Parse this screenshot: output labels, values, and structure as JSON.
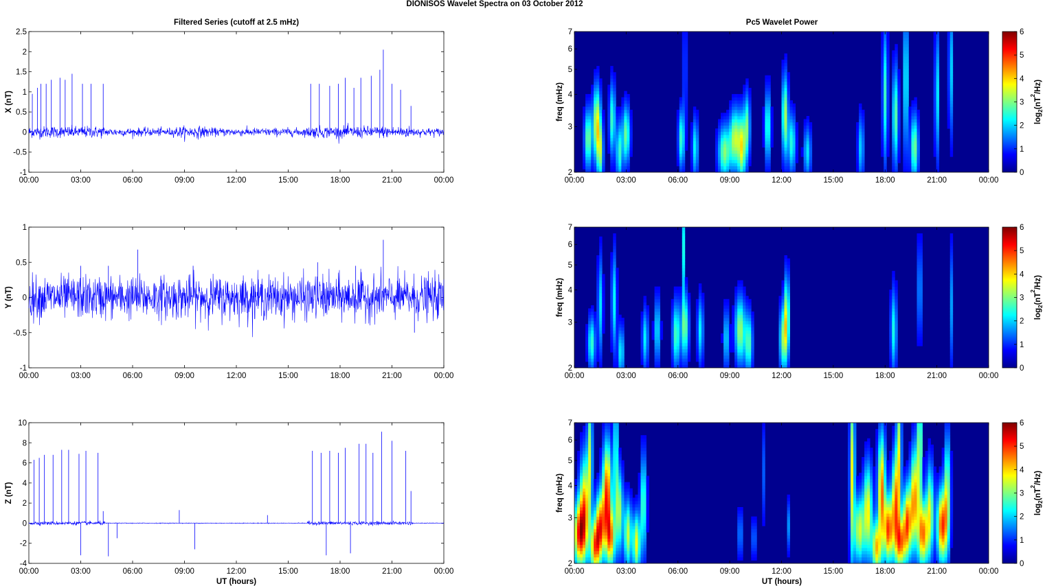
{
  "figure_title": "DIONISOS Wavelet Spectra on 03 October   2012",
  "left_title": "Filtered Series (cutoff at 2.5 mHz)",
  "right_title": "Pc5 Wavelet Power",
  "xlabel": "UT (hours)",
  "time_ticks": [
    "00:00",
    "03:00",
    "06:00",
    "09:00",
    "12:00",
    "15:00",
    "18:00",
    "21:00",
    "00:00"
  ],
  "colors": {
    "series_line": "#0000ff",
    "spectrogram_background": "#00008f"
  },
  "chart_data": [
    {
      "type": "line",
      "ylabel": "X (nT)",
      "ylim": [
        -1,
        2.5
      ],
      "yticks": [
        "-1",
        "-0.5",
        "0",
        "0.5",
        "1",
        "1.5",
        "2",
        "2.5"
      ],
      "xlim_hours": [
        0,
        24
      ],
      "noise_amplitude_nT": 0.12,
      "spikes": [
        {
          "t": 0.2,
          "v": 0.95
        },
        {
          "t": 0.5,
          "v": 1.1
        },
        {
          "t": 0.7,
          "v": 1.2
        },
        {
          "t": 1.0,
          "v": 1.2
        },
        {
          "t": 1.3,
          "v": 1.3
        },
        {
          "t": 1.8,
          "v": 1.35
        },
        {
          "t": 2.1,
          "v": 1.3
        },
        {
          "t": 2.5,
          "v": 1.45
        },
        {
          "t": 3.1,
          "v": 1.2
        },
        {
          "t": 3.6,
          "v": 1.2
        },
        {
          "t": 4.3,
          "v": 1.2
        },
        {
          "t": 16.3,
          "v": 1.2
        },
        {
          "t": 16.8,
          "v": 1.2
        },
        {
          "t": 17.4,
          "v": 1.15
        },
        {
          "t": 17.9,
          "v": 1.2
        },
        {
          "t": 18.3,
          "v": 1.35
        },
        {
          "t": 18.8,
          "v": 1.1
        },
        {
          "t": 19.2,
          "v": 1.35
        },
        {
          "t": 19.8,
          "v": 1.4
        },
        {
          "t": 20.3,
          "v": 1.55
        },
        {
          "t": 20.5,
          "v": 2.05
        },
        {
          "t": 21.0,
          "v": 1.2
        },
        {
          "t": 21.5,
          "v": 1.05
        },
        {
          "t": 22.1,
          "v": 0.65
        }
      ]
    },
    {
      "type": "line",
      "ylabel": "Y (nT)",
      "ylim": [
        -1,
        1
      ],
      "yticks": [
        "-1",
        "-0.5",
        "0",
        "0.5",
        "1"
      ],
      "xlim_hours": [
        0,
        24
      ],
      "noise_amplitude_nT": 0.25,
      "spikes": [
        {
          "t": 3.0,
          "v": 0.45
        },
        {
          "t": 4.6,
          "v": 0.45
        },
        {
          "t": 6.3,
          "v": 0.68
        },
        {
          "t": 9.5,
          "v": 0.45
        },
        {
          "t": 16.7,
          "v": 0.5
        },
        {
          "t": 18.9,
          "v": 0.45
        },
        {
          "t": 20.5,
          "v": 0.82
        },
        {
          "t": 22.3,
          "v": -0.5
        }
      ]
    },
    {
      "type": "line",
      "ylabel": "Z (nT)",
      "ylim": [
        -4,
        10
      ],
      "yticks": [
        "-4",
        "-2",
        "0",
        "2",
        "4",
        "6",
        "8",
        "10"
      ],
      "xlim_hours": [
        0,
        24
      ],
      "noise_amplitude_nT": 0.15,
      "spikes": [
        {
          "t": 0.3,
          "v": 6.3
        },
        {
          "t": 0.6,
          "v": 6.5
        },
        {
          "t": 0.9,
          "v": 6.8
        },
        {
          "t": 1.4,
          "v": 6.8
        },
        {
          "t": 1.9,
          "v": 7.3
        },
        {
          "t": 2.3,
          "v": 7.3
        },
        {
          "t": 2.9,
          "v": 6.9
        },
        {
          "t": 3.3,
          "v": 7.2
        },
        {
          "t": 4.0,
          "v": 7.0
        },
        {
          "t": 4.3,
          "v": 1.2
        },
        {
          "t": 3.0,
          "v": -3.2
        },
        {
          "t": 4.6,
          "v": -3.3
        },
        {
          "t": 5.1,
          "v": -1.5
        },
        {
          "t": 8.7,
          "v": 1.3
        },
        {
          "t": 9.6,
          "v": -2.6
        },
        {
          "t": 13.8,
          "v": 0.8
        },
        {
          "t": 16.4,
          "v": 7.2
        },
        {
          "t": 16.9,
          "v": 7.0
        },
        {
          "t": 17.2,
          "v": -3.2
        },
        {
          "t": 17.4,
          "v": 7.2
        },
        {
          "t": 17.9,
          "v": 7.0
        },
        {
          "t": 18.3,
          "v": 7.5
        },
        {
          "t": 18.6,
          "v": -3.0
        },
        {
          "t": 19.1,
          "v": 7.9
        },
        {
          "t": 19.5,
          "v": 7.9
        },
        {
          "t": 19.9,
          "v": 7.0
        },
        {
          "t": 20.4,
          "v": 9.1
        },
        {
          "t": 21.0,
          "v": 8.2
        },
        {
          "t": 21.8,
          "v": 7.2
        },
        {
          "t": 22.1,
          "v": 3.2
        }
      ]
    },
    {
      "type": "heatmap",
      "ylabel": "freq (mHz)",
      "yscale": "log",
      "ylim": [
        2,
        7
      ],
      "yticks": [
        "2",
        "3",
        "4",
        "5",
        "6",
        "7"
      ],
      "xlim_hours": [
        0,
        24
      ],
      "colorbar_label": "log2(nT2/Hz)",
      "clim": [
        0,
        6
      ],
      "cticks": [
        "0",
        "1",
        "2",
        "3",
        "4",
        "5",
        "6"
      ],
      "blobs": [
        {
          "t": 0.8,
          "f": 2.7,
          "p": 2.8,
          "w": 0.15,
          "h": 0.18
        },
        {
          "t": 1.3,
          "f": 3.1,
          "p": 3.6,
          "w": 0.15,
          "h": 0.22
        },
        {
          "t": 1.5,
          "f": 2.4,
          "p": 2.6,
          "w": 0.12,
          "h": 0.18
        },
        {
          "t": 2.2,
          "f": 3.2,
          "p": 2.4,
          "w": 0.12,
          "h": 0.22
        },
        {
          "t": 2.6,
          "f": 2.4,
          "p": 2.3,
          "w": 0.12,
          "h": 0.18
        },
        {
          "t": 3.0,
          "f": 2.8,
          "p": 2.7,
          "w": 0.15,
          "h": 0.18
        },
        {
          "t": 6.2,
          "f": 2.7,
          "p": 2.4,
          "w": 0.12,
          "h": 0.18
        },
        {
          "t": 6.4,
          "f": 5.0,
          "p": 1.9,
          "w": 0.05,
          "h": 0.4
        },
        {
          "t": 7.0,
          "f": 2.5,
          "p": 2.0,
          "w": 0.12,
          "h": 0.18
        },
        {
          "t": 8.7,
          "f": 2.4,
          "p": 2.8,
          "w": 0.25,
          "h": 0.16
        },
        {
          "t": 9.3,
          "f": 2.7,
          "p": 3.1,
          "w": 0.2,
          "h": 0.18
        },
        {
          "t": 9.7,
          "f": 2.5,
          "p": 3.3,
          "w": 0.15,
          "h": 0.2
        },
        {
          "t": 10.0,
          "f": 3.0,
          "p": 2.5,
          "w": 0.12,
          "h": 0.2
        },
        {
          "t": 11.2,
          "f": 3.0,
          "p": 2.4,
          "w": 0.12,
          "h": 0.22
        },
        {
          "t": 12.2,
          "f": 3.3,
          "p": 3.1,
          "w": 0.12,
          "h": 0.25
        },
        {
          "t": 12.6,
          "f": 2.6,
          "p": 2.2,
          "w": 0.15,
          "h": 0.18
        },
        {
          "t": 13.5,
          "f": 2.4,
          "p": 1.8,
          "w": 0.15,
          "h": 0.16
        },
        {
          "t": 16.6,
          "f": 2.5,
          "p": 1.7,
          "w": 0.12,
          "h": 0.2
        },
        {
          "t": 18.0,
          "f": 4.0,
          "p": 2.3,
          "w": 0.1,
          "h": 0.4
        },
        {
          "t": 18.6,
          "f": 3.3,
          "p": 2.6,
          "w": 0.12,
          "h": 0.3
        },
        {
          "t": 19.2,
          "f": 4.5,
          "p": 2.2,
          "w": 0.1,
          "h": 0.45
        },
        {
          "t": 19.7,
          "f": 2.5,
          "p": 2.8,
          "w": 0.15,
          "h": 0.2
        },
        {
          "t": 21.0,
          "f": 4.0,
          "p": 2.0,
          "w": 0.08,
          "h": 0.4
        },
        {
          "t": 21.8,
          "f": 5.0,
          "p": 1.8,
          "w": 0.08,
          "h": 0.4
        }
      ]
    },
    {
      "type": "heatmap",
      "ylabel": "freq (mHz)",
      "yscale": "log",
      "ylim": [
        2,
        7
      ],
      "yticks": [
        "2",
        "3",
        "4",
        "5",
        "6",
        "7"
      ],
      "xlim_hours": [
        0,
        24
      ],
      "colorbar_label": "log2(nT2/Hz)",
      "clim": [
        0,
        6
      ],
      "cticks": [
        "0",
        "1",
        "2",
        "3",
        "4",
        "5",
        "6"
      ],
      "blobs": [
        {
          "t": 1.0,
          "f": 2.5,
          "p": 2.3,
          "w": 0.15,
          "h": 0.16
        },
        {
          "t": 1.5,
          "f": 3.5,
          "p": 1.8,
          "w": 0.1,
          "h": 0.3
        },
        {
          "t": 2.3,
          "f": 3.6,
          "p": 2.0,
          "w": 0.1,
          "h": 0.3
        },
        {
          "t": 2.7,
          "f": 2.3,
          "p": 2.0,
          "w": 0.12,
          "h": 0.16
        },
        {
          "t": 4.1,
          "f": 2.6,
          "p": 1.9,
          "w": 0.12,
          "h": 0.18
        },
        {
          "t": 4.8,
          "f": 2.8,
          "p": 1.9,
          "w": 0.12,
          "h": 0.2
        },
        {
          "t": 5.9,
          "f": 2.7,
          "p": 2.5,
          "w": 0.15,
          "h": 0.2
        },
        {
          "t": 6.4,
          "f": 2.9,
          "p": 2.8,
          "w": 0.15,
          "h": 0.2
        },
        {
          "t": 6.3,
          "f": 5.8,
          "p": 2.2,
          "w": 0.05,
          "h": 0.3
        },
        {
          "t": 7.3,
          "f": 2.8,
          "p": 1.9,
          "w": 0.12,
          "h": 0.2
        },
        {
          "t": 8.8,
          "f": 2.6,
          "p": 1.8,
          "w": 0.12,
          "h": 0.18
        },
        {
          "t": 9.6,
          "f": 2.8,
          "p": 3.0,
          "w": 0.2,
          "h": 0.2
        },
        {
          "t": 10.1,
          "f": 2.5,
          "p": 2.5,
          "w": 0.15,
          "h": 0.18
        },
        {
          "t": 12.1,
          "f": 2.6,
          "p": 2.8,
          "w": 0.15,
          "h": 0.2
        },
        {
          "t": 12.3,
          "f": 3.2,
          "p": 3.1,
          "w": 0.1,
          "h": 0.25
        },
        {
          "t": 18.5,
          "f": 2.8,
          "p": 2.1,
          "w": 0.12,
          "h": 0.25
        },
        {
          "t": 20.0,
          "f": 4.0,
          "p": 1.6,
          "w": 0.08,
          "h": 0.3
        },
        {
          "t": 21.8,
          "f": 3.5,
          "p": 1.6,
          "w": 0.06,
          "h": 0.35
        }
      ]
    },
    {
      "type": "heatmap",
      "ylabel": "freq (mHz)",
      "yscale": "log",
      "ylim": [
        2,
        7
      ],
      "yticks": [
        "2",
        "3",
        "4",
        "5",
        "6",
        "7"
      ],
      "xlim_hours": [
        0,
        24
      ],
      "colorbar_label": "log2(nT2/Hz)",
      "clim": [
        0,
        6
      ],
      "cticks": [
        "0",
        "1",
        "2",
        "3",
        "4",
        "5",
        "6"
      ],
      "blobs": [
        {
          "t": 0.3,
          "f": 2.6,
          "p": 4.8,
          "w": 0.25,
          "h": 0.2
        },
        {
          "t": 0.6,
          "f": 3.4,
          "p": 3.8,
          "w": 0.2,
          "h": 0.3
        },
        {
          "t": 1.2,
          "f": 2.3,
          "p": 4.0,
          "w": 0.2,
          "h": 0.16
        },
        {
          "t": 1.5,
          "f": 2.8,
          "p": 4.5,
          "w": 0.2,
          "h": 0.2
        },
        {
          "t": 1.9,
          "f": 3.8,
          "p": 4.8,
          "w": 0.18,
          "h": 0.3
        },
        {
          "t": 2.1,
          "f": 2.5,
          "p": 3.9,
          "w": 0.18,
          "h": 0.18
        },
        {
          "t": 2.6,
          "f": 3.2,
          "p": 3.0,
          "w": 0.15,
          "h": 0.25
        },
        {
          "t": 3.1,
          "f": 2.6,
          "p": 3.2,
          "w": 0.15,
          "h": 0.2
        },
        {
          "t": 3.6,
          "f": 2.4,
          "p": 3.5,
          "w": 0.15,
          "h": 0.18
        },
        {
          "t": 4.0,
          "f": 3.4,
          "p": 2.6,
          "w": 0.12,
          "h": 0.3
        },
        {
          "t": 0.9,
          "f": 5.5,
          "p": 2.8,
          "w": 0.1,
          "h": 0.4
        },
        {
          "t": 2.4,
          "f": 5.5,
          "p": 2.6,
          "w": 0.08,
          "h": 0.4
        },
        {
          "t": 16.1,
          "f": 4.5,
          "p": 3.5,
          "w": 0.1,
          "h": 0.55
        },
        {
          "t": 16.5,
          "f": 2.7,
          "p": 3.3,
          "w": 0.2,
          "h": 0.2
        },
        {
          "t": 17.0,
          "f": 3.2,
          "p": 3.6,
          "w": 0.18,
          "h": 0.28
        },
        {
          "t": 17.5,
          "f": 2.3,
          "p": 3.8,
          "w": 0.18,
          "h": 0.16
        },
        {
          "t": 17.8,
          "f": 3.8,
          "p": 4.5,
          "w": 0.15,
          "h": 0.35
        },
        {
          "t": 18.2,
          "f": 2.7,
          "p": 4.8,
          "w": 0.18,
          "h": 0.2
        },
        {
          "t": 18.6,
          "f": 3.4,
          "p": 4.2,
          "w": 0.15,
          "h": 0.3
        },
        {
          "t": 18.9,
          "f": 2.4,
          "p": 4.0,
          "w": 0.2,
          "h": 0.16
        },
        {
          "t": 19.3,
          "f": 2.9,
          "p": 4.6,
          "w": 0.18,
          "h": 0.22
        },
        {
          "t": 19.7,
          "f": 3.6,
          "p": 4.2,
          "w": 0.15,
          "h": 0.3
        },
        {
          "t": 20.2,
          "f": 2.6,
          "p": 4.4,
          "w": 0.2,
          "h": 0.2
        },
        {
          "t": 20.6,
          "f": 3.2,
          "p": 3.2,
          "w": 0.15,
          "h": 0.28
        },
        {
          "t": 21.3,
          "f": 2.8,
          "p": 4.9,
          "w": 0.2,
          "h": 0.22
        },
        {
          "t": 21.6,
          "f": 3.8,
          "p": 3.0,
          "w": 0.12,
          "h": 0.35
        },
        {
          "t": 18.8,
          "f": 5.5,
          "p": 3.0,
          "w": 0.1,
          "h": 0.45
        },
        {
          "t": 20.0,
          "f": 5.5,
          "p": 3.2,
          "w": 0.1,
          "h": 0.45
        },
        {
          "t": 9.6,
          "f": 2.6,
          "p": 1.5,
          "w": 0.08,
          "h": 0.15
        },
        {
          "t": 10.4,
          "f": 2.5,
          "p": 1.3,
          "w": 0.08,
          "h": 0.12
        },
        {
          "t": 11.0,
          "f": 4.5,
          "p": 1.2,
          "w": 0.05,
          "h": 0.3
        },
        {
          "t": 12.4,
          "f": 2.8,
          "p": 1.2,
          "w": 0.06,
          "h": 0.15
        }
      ]
    }
  ]
}
